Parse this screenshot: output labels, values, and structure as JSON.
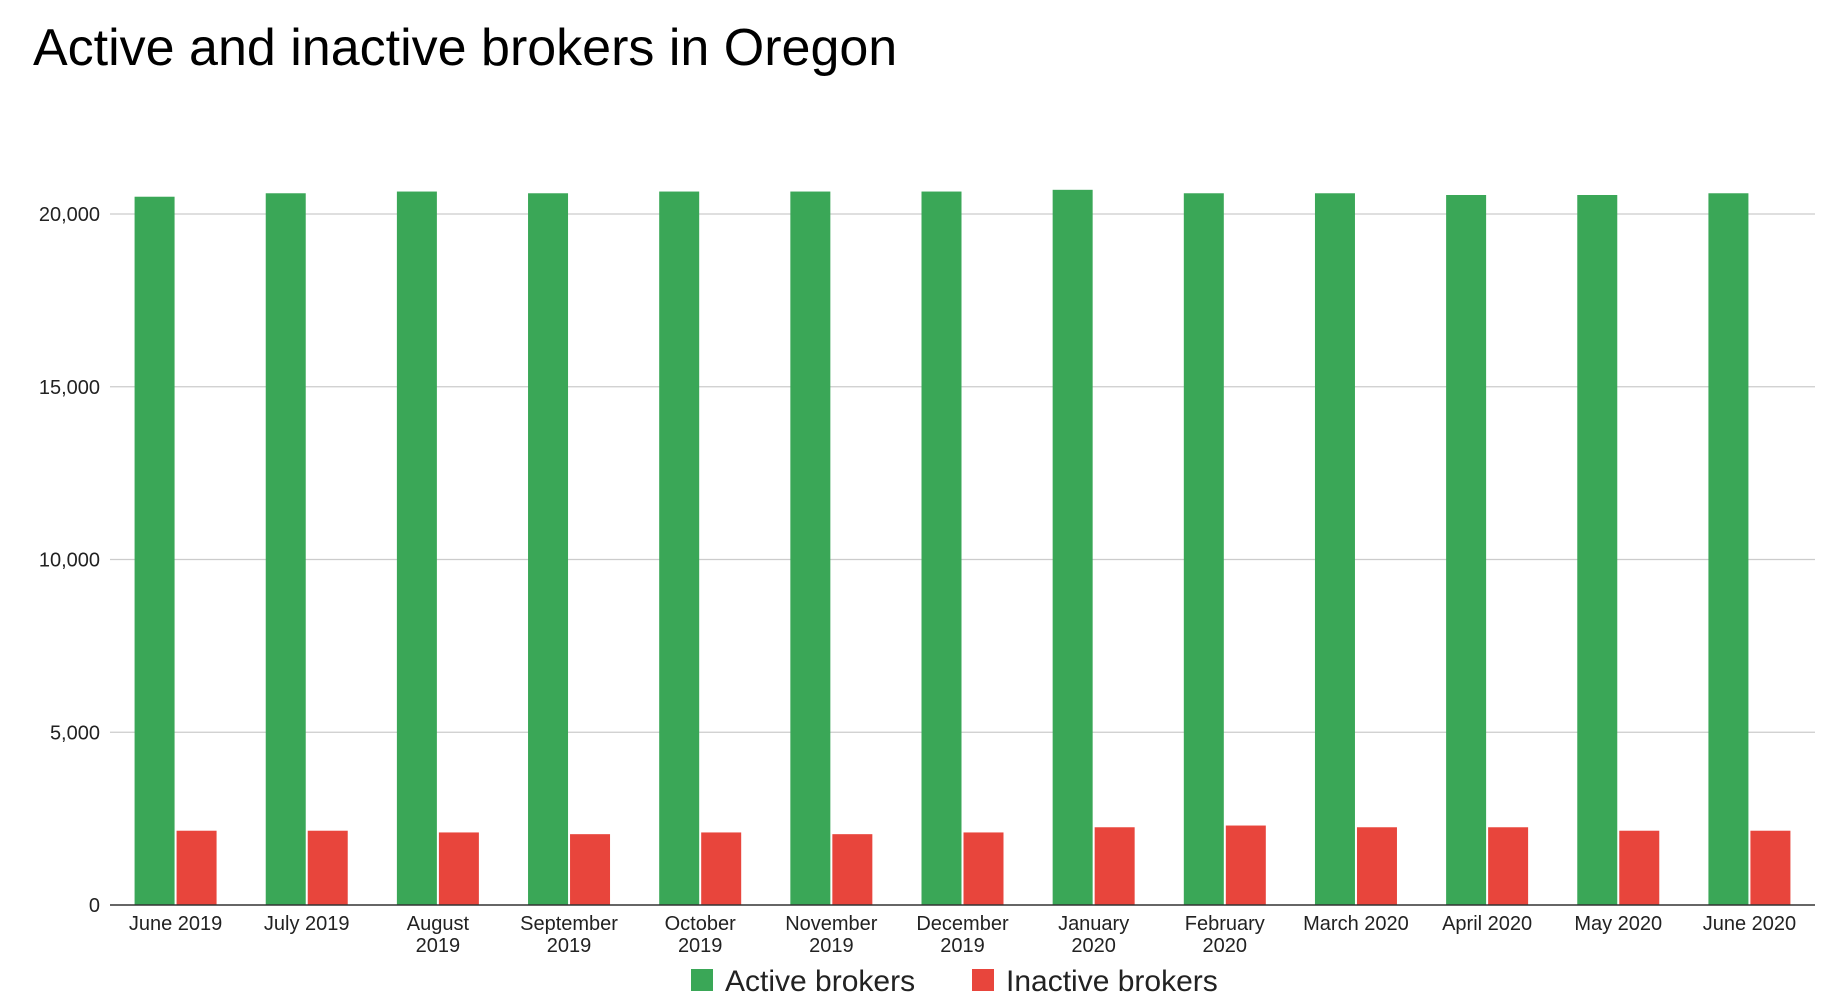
{
  "chart_data": {
    "type": "bar",
    "title": "Active and inactive brokers in Oregon",
    "xlabel": "",
    "ylabel": "",
    "ylim": [
      0,
      20000
    ],
    "yticks": [
      "0",
      "5,000",
      "10,000",
      "15,000",
      "20,000"
    ],
    "grid": true,
    "legend_position": "bottom",
    "categories": [
      [
        "June 2019"
      ],
      [
        "July 2019"
      ],
      [
        "August",
        "2019"
      ],
      [
        "September",
        "2019"
      ],
      [
        "October",
        "2019"
      ],
      [
        "November",
        "2019"
      ],
      [
        "December",
        "2019"
      ],
      [
        "January",
        "2020"
      ],
      [
        "February",
        "2020"
      ],
      [
        "March 2020"
      ],
      [
        "April 2020"
      ],
      [
        "May 2020"
      ],
      [
        "June 2020"
      ]
    ],
    "series": [
      {
        "name": "Active brokers",
        "color": "#3aa757",
        "values": [
          20500,
          20600,
          20650,
          20600,
          20650,
          20650,
          20650,
          20700,
          20600,
          20600,
          20550,
          20550,
          20600
        ]
      },
      {
        "name": "Inactive brokers",
        "color": "#e8453c",
        "values": [
          2150,
          2150,
          2100,
          2050,
          2100,
          2050,
          2100,
          2250,
          2300,
          2250,
          2250,
          2150,
          2150
        ]
      }
    ]
  }
}
